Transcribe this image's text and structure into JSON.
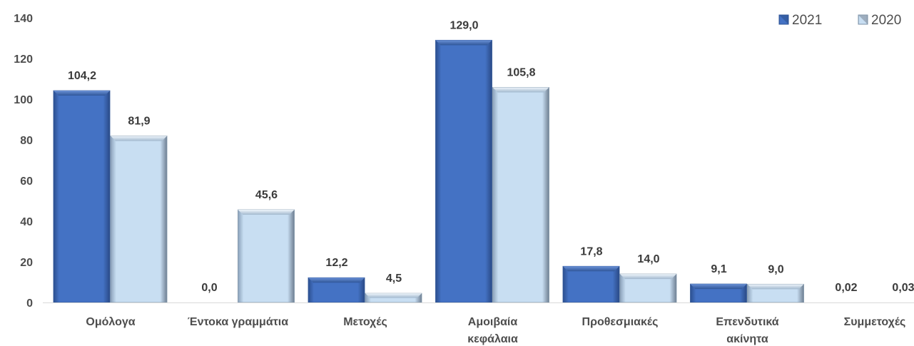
{
  "chart_data": {
    "type": "bar",
    "categories": [
      [
        "Ομόλογα"
      ],
      [
        "Έντοκα γραμμάτια"
      ],
      [
        "Μετοχές"
      ],
      [
        "Αμοιβαία",
        "κεφάλαια"
      ],
      [
        "Προθεσμιακές"
      ],
      [
        "Επενδυτικά",
        "ακίνητα"
      ],
      [
        "Συμμετοχές"
      ]
    ],
    "series": [
      {
        "name": "2021",
        "values": [
          104.2,
          0.0,
          12.2,
          129.0,
          17.8,
          9.1,
          0.02
        ],
        "labels": [
          "104,2",
          "0,0",
          "12,2",
          "129,0",
          "17,8",
          "9,1",
          "0,02"
        ],
        "color": "#4472c4"
      },
      {
        "name": "2020",
        "values": [
          81.9,
          45.6,
          4.5,
          105.8,
          14.0,
          9.0,
          0.03
        ],
        "labels": [
          "81,9",
          "45,6",
          "4,5",
          "105,8",
          "14,0",
          "9,0",
          "0,03"
        ],
        "color": "#bdd7ee"
      }
    ],
    "ylim": [
      0,
      140
    ],
    "yticks": [
      0,
      20,
      40,
      60,
      80,
      100,
      120,
      140
    ],
    "grid": false,
    "legend_position": "top-right"
  }
}
